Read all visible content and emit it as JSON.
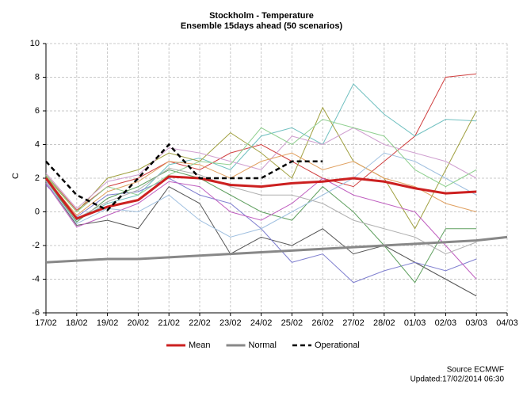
{
  "chart_data": {
    "type": "line",
    "title": "Stockholm - Temperature",
    "subtitle": "Ensemble 15days ahead (50 scenarios)",
    "y_label": "C",
    "source": "Source ECMWF",
    "updated": "Updated:17/02/2014 06:30",
    "categories": [
      "17/02",
      "18/02",
      "19/02",
      "20/02",
      "21/02",
      "22/02",
      "23/02",
      "24/02",
      "25/02",
      "26/02",
      "27/02",
      "28/02",
      "01/03",
      "02/03",
      "03/03",
      "04/03"
    ],
    "ylim": [
      -6,
      10
    ],
    "yticks": [
      -6,
      -4,
      -2,
      0,
      2,
      4,
      6,
      8,
      10
    ],
    "grid": true,
    "series": [
      {
        "color": "#d04040",
        "values": [
          2.2,
          0.1,
          1.5,
          2.0,
          3.0,
          2.5,
          3.5,
          4.0,
          3.0,
          2.0,
          1.5,
          3.0,
          4.5,
          8.0,
          8.2,
          null
        ]
      },
      {
        "color": "#70c0c0",
        "values": [
          2.0,
          -0.5,
          0.5,
          1.0,
          2.8,
          3.2,
          2.5,
          4.5,
          5.0,
          4.0,
          7.6,
          5.8,
          4.5,
          5.5,
          5.4,
          null
        ]
      },
      {
        "color": "#555555",
        "values": [
          1.8,
          -0.8,
          -0.5,
          -1.0,
          1.5,
          0.5,
          -2.5,
          -1.5,
          -2.0,
          -1.0,
          -2.5,
          -2.0,
          -3.0,
          -4.0,
          -5.0,
          null
        ]
      },
      {
        "color": "#8080d0",
        "values": [
          1.6,
          -0.3,
          1.0,
          1.2,
          2.0,
          1.0,
          0.5,
          -1.0,
          -3.0,
          -2.5,
          -4.2,
          -3.5,
          -3.0,
          -3.5,
          -2.8,
          null
        ]
      },
      {
        "color": "#a0a040",
        "values": [
          2.1,
          0.0,
          2.0,
          2.5,
          3.5,
          3.0,
          4.7,
          3.5,
          2.0,
          6.2,
          3.0,
          2.0,
          -1.0,
          2.5,
          6.0,
          null
        ]
      },
      {
        "color": "#60a060",
        "values": [
          1.9,
          -0.6,
          0.8,
          1.5,
          2.5,
          2.0,
          1.0,
          0.0,
          -0.5,
          1.5,
          0.0,
          -2.0,
          -4.2,
          -1.0,
          -1.0,
          null
        ]
      },
      {
        "color": "#d0a0d0",
        "values": [
          2.3,
          0.2,
          1.8,
          2.2,
          3.8,
          3.5,
          3.0,
          2.5,
          4.5,
          4.0,
          5.0,
          4.0,
          3.5,
          3.0,
          2.0,
          null
        ]
      },
      {
        "color": "#c060c0",
        "values": [
          1.7,
          -0.9,
          -0.2,
          0.5,
          1.8,
          1.5,
          0.0,
          -0.5,
          0.5,
          2.0,
          1.0,
          0.5,
          0.0,
          -2.0,
          -4.0,
          null
        ]
      },
      {
        "color": "#e0a060",
        "values": [
          2.0,
          -0.2,
          1.2,
          1.8,
          3.0,
          2.8,
          2.0,
          3.0,
          3.5,
          2.5,
          3.0,
          2.0,
          1.5,
          0.5,
          0.0,
          null
        ]
      },
      {
        "color": "#a0c0e0",
        "values": [
          1.8,
          -0.7,
          0.2,
          0.0,
          1.0,
          -0.5,
          -1.5,
          -1.0,
          0.0,
          1.0,
          2.0,
          3.5,
          3.0,
          2.0,
          1.0,
          null
        ]
      },
      {
        "color": "#90d090",
        "values": [
          2.2,
          0.0,
          1.5,
          1.0,
          2.2,
          3.0,
          2.8,
          5.0,
          4.0,
          5.5,
          5.0,
          4.5,
          2.5,
          1.5,
          2.5,
          null
        ]
      },
      {
        "color": "#b0b0b0",
        "values": [
          1.9,
          -0.4,
          0.6,
          1.3,
          2.6,
          2.2,
          1.5,
          1.0,
          1.0,
          0.5,
          -0.5,
          -1.0,
          -1.5,
          -2.5,
          -1.8,
          null
        ]
      },
      {
        "name": "Mean",
        "color": "#cc2020",
        "width": 3,
        "values": [
          2.0,
          -0.4,
          0.3,
          0.7,
          2.1,
          2.0,
          1.6,
          1.5,
          1.7,
          1.8,
          2.0,
          1.8,
          1.4,
          1.1,
          1.2,
          null
        ]
      },
      {
        "name": "Normal",
        "color": "#888888",
        "width": 3,
        "values": [
          -3.0,
          -2.9,
          -2.8,
          -2.8,
          -2.7,
          -2.6,
          -2.5,
          -2.4,
          -2.3,
          -2.2,
          -2.1,
          -2.0,
          -1.9,
          -1.8,
          -1.7,
          -1.5
        ]
      },
      {
        "name": "Operational",
        "color": "#000000",
        "width": 2.5,
        "dashed": true,
        "values": [
          3.0,
          1.0,
          0.1,
          2.0,
          4.0,
          2.0,
          2.0,
          2.0,
          3.0,
          3.0,
          null,
          null,
          null,
          null,
          null,
          null
        ]
      }
    ]
  }
}
